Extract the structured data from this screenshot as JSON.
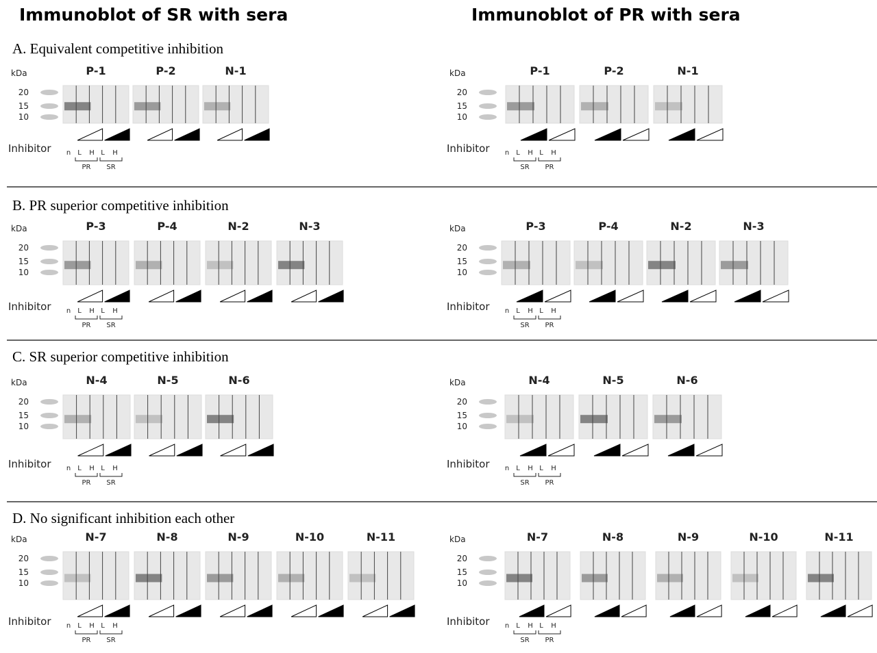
{
  "headers": {
    "left": "Immunoblot of SR with sera",
    "right": "Immunoblot of PR with sera"
  },
  "common": {
    "kda": "kDa",
    "markers": [
      "20",
      "15",
      "10"
    ],
    "inhibitor": "Inhibitor",
    "lanes": [
      "n",
      "L",
      "H",
      "L",
      "H"
    ]
  },
  "sections": [
    {
      "title": "A. Equivalent  competitive  inhibition",
      "left": {
        "blots": [
          "P-1",
          "P-2",
          "N-1"
        ],
        "groups": [
          "PR",
          "SR"
        ]
      },
      "right": {
        "blots": [
          "P-1",
          "P-2",
          "N-1"
        ],
        "groups": [
          "SR",
          "PR"
        ]
      }
    },
    {
      "title": "B. PR superior competitive  inhibition",
      "left": {
        "blots": [
          "P-3",
          "P-4",
          "N-2",
          "N-3"
        ],
        "groups": [
          "PR",
          "SR"
        ]
      },
      "right": {
        "blots": [
          "P-3",
          "P-4",
          "N-2",
          "N-3"
        ],
        "groups": [
          "SR",
          "PR"
        ]
      }
    },
    {
      "title": "C. SR superior competitive  inhibition",
      "left": {
        "blots": [
          "N-4",
          "N-5",
          "N-6"
        ],
        "groups": [
          "PR",
          "SR"
        ]
      },
      "right": {
        "blots": [
          "N-4",
          "N-5",
          "N-6"
        ],
        "groups": [
          "SR",
          "PR"
        ]
      }
    },
    {
      "title": "D. No significant  inhibition  each other",
      "left": {
        "blots": [
          "N-7",
          "N-8",
          "N-9",
          "N-10",
          "N-11"
        ],
        "groups": [
          "PR",
          "SR"
        ]
      },
      "right": {
        "blots": [
          "N-7",
          "N-8",
          "N-9",
          "N-10",
          "N-11"
        ],
        "groups": [
          "SR",
          "PR"
        ]
      }
    }
  ]
}
